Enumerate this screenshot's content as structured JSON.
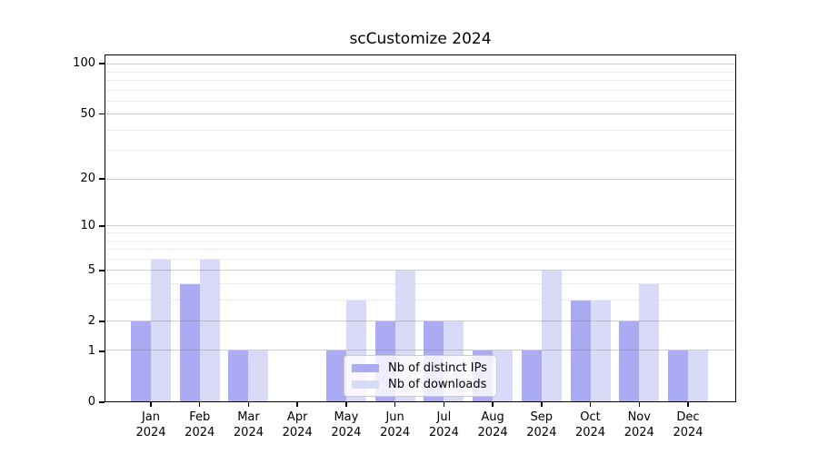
{
  "chart_data": {
    "type": "bar",
    "title": "scCustomize 2024",
    "categories": [
      "Jan",
      "Feb",
      "Mar",
      "Apr",
      "May",
      "Jun",
      "Jul",
      "Aug",
      "Sep",
      "Oct",
      "Nov",
      "Dec"
    ],
    "year": "2024",
    "series": [
      {
        "name": "Nb of distinct IPs",
        "color": "#aaabf2",
        "values": [
          2,
          4,
          1,
          0,
          1,
          2,
          2,
          1,
          1,
          3,
          2,
          1
        ]
      },
      {
        "name": "Nb of downloads",
        "color": "#d9daf8",
        "values": [
          6,
          6,
          1,
          0,
          3,
          5,
          2,
          1,
          5,
          3,
          4,
          1
        ]
      }
    ],
    "y_axis": {
      "scale": "log1p",
      "min": 0,
      "max": 114,
      "tick_labels": [
        0,
        1,
        2,
        5,
        10,
        20,
        50,
        100
      ],
      "major_gridlines": [
        1,
        2,
        5,
        10,
        20,
        50,
        100
      ],
      "minor_gridlines": [
        3,
        4,
        6,
        7,
        8,
        9,
        30,
        40,
        60,
        70,
        80,
        90
      ]
    },
    "legend": {
      "entries": [
        "Nb of distinct IPs",
        "Nb of downloads"
      ],
      "position": "lower center"
    },
    "grid": "on"
  }
}
